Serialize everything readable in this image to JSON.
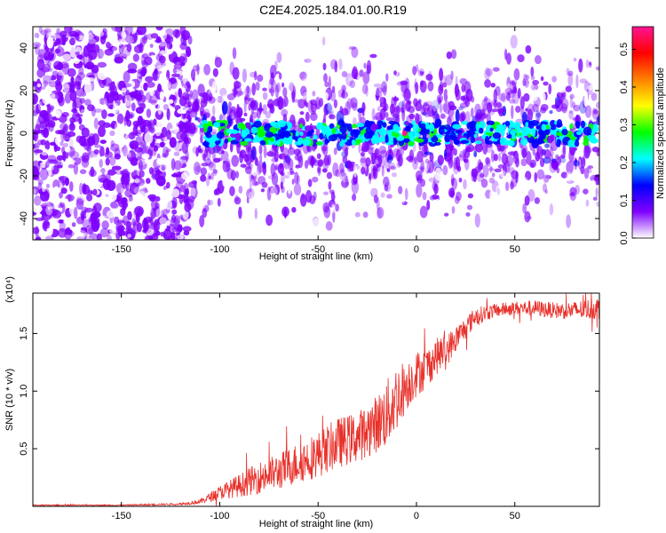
{
  "figure_title": "C2E4.2025.184.01.00.R19",
  "colorbar_label": "Normalized spectral amplitude",
  "chart_data": [
    {
      "type": "heatmap",
      "title": "C2E4.2025.184.01.00.R19",
      "xlabel": "Height of straight line (km)",
      "ylabel": "Frequency (Hz)",
      "xlim": [
        -195,
        93
      ],
      "ylim": [
        -50,
        50
      ],
      "xticks": [
        "-150",
        "-100",
        "-50",
        "0",
        "50"
      ],
      "xtick_values": [
        -150,
        -100,
        -50,
        0,
        50
      ],
      "yticks": [
        "-40",
        "-20",
        "0",
        "20",
        "40"
      ],
      "ytick_values": [
        -40,
        -20,
        0,
        20,
        40
      ],
      "colorbar": {
        "label": "Normalized spectral amplitude",
        "range": [
          0,
          0.56
        ],
        "ticks": [
          "0.0",
          "0.1",
          "0.2",
          "0.3",
          "0.4",
          "0.5"
        ],
        "tick_values": [
          0,
          0.1,
          0.2,
          0.3,
          0.4,
          0.5
        ],
        "colormap": [
          "#ffffff",
          "#7f00ff",
          "#0000ff",
          "#00ffff",
          "#00ff00",
          "#ffff00",
          "#ff8000",
          "#ff0000",
          "#ff1493"
        ]
      },
      "description_values": {
        "noise_region_x": [
          -195,
          -120
        ],
        "signal_band_center_hz": 0,
        "signal_band_onset_x": -110,
        "peak_amplitude": 0.55,
        "peak_x": -6,
        "peak_y": 0
      }
    },
    {
      "type": "line",
      "xlabel": "Height of straight line (km)",
      "ylabel": "SNR (10 * v/v)",
      "y_multiplier": "(x10⁴)",
      "xlim": [
        -195,
        93
      ],
      "ylim": [
        0,
        1.85
      ],
      "xticks": [
        "-150",
        "-100",
        "-50",
        "0",
        "50"
      ],
      "xtick_values": [
        -150,
        -100,
        -50,
        0,
        50
      ],
      "yticks": [
        "0.5",
        "1.0",
        "1.5"
      ],
      "ytick_values": [
        0.5,
        1.0,
        1.5
      ],
      "color": "#e8302a",
      "series": [
        {
          "x": [
            -195,
            -150,
            -120,
            -110,
            -100,
            -90,
            -80,
            -70,
            -60,
            -50,
            -40,
            -30,
            -20,
            -15,
            -10,
            -5,
            0,
            5,
            10,
            15,
            20,
            25,
            30,
            40,
            50,
            60,
            70,
            80,
            93
          ],
          "values": [
            0.01,
            0.01,
            0.02,
            0.04,
            0.12,
            0.18,
            0.25,
            0.3,
            0.38,
            0.45,
            0.55,
            0.6,
            0.72,
            0.8,
            0.95,
            1.05,
            1.15,
            1.2,
            1.3,
            1.35,
            1.45,
            1.55,
            1.65,
            1.7,
            1.72,
            1.72,
            1.7,
            1.7,
            1.72
          ],
          "noise_amplitude": [
            0.005,
            0.005,
            0.01,
            0.02,
            0.06,
            0.1,
            0.14,
            0.16,
            0.18,
            0.2,
            0.22,
            0.22,
            0.25,
            0.3,
            0.3,
            0.22,
            0.2,
            0.18,
            0.16,
            0.14,
            0.12,
            0.1,
            0.08,
            0.06,
            0.06,
            0.07,
            0.07,
            0.08,
            0.1
          ]
        }
      ]
    }
  ]
}
